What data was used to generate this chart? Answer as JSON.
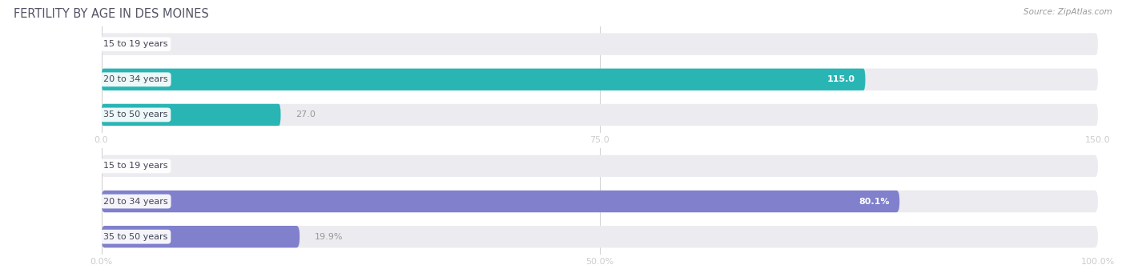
{
  "title": "FERTILITY BY AGE IN DES MOINES",
  "source": "Source: ZipAtlas.com",
  "top_chart": {
    "categories": [
      "15 to 19 years",
      "20 to 34 years",
      "35 to 50 years"
    ],
    "values": [
      0.0,
      115.0,
      27.0
    ],
    "xlim": [
      0,
      150
    ],
    "xticks": [
      0.0,
      75.0,
      150.0
    ],
    "bar_color": "#2ab5b5",
    "bar_color_light": "#8ed8d8",
    "label_inside_color": "#ffffff",
    "label_outside_color": "#999999",
    "bar_bg_color": "#ebebf0"
  },
  "bottom_chart": {
    "categories": [
      "15 to 19 years",
      "20 to 34 years",
      "35 to 50 years"
    ],
    "values": [
      0.0,
      80.1,
      19.9
    ],
    "xlim": [
      0,
      100
    ],
    "xticks": [
      0.0,
      50.0,
      100.0
    ],
    "bar_color": "#8080cc",
    "bar_color_light": "#b0b0e0",
    "label_inside_color": "#ffffff",
    "label_outside_color": "#999999",
    "bar_bg_color": "#ebebf0"
  },
  "fig_bg_color": "#ffffff",
  "title_color": "#555566",
  "title_fontsize": 10.5,
  "source_fontsize": 7.5,
  "label_fontsize": 8,
  "tick_fontsize": 8,
  "category_fontsize": 8,
  "bar_height": 0.62
}
